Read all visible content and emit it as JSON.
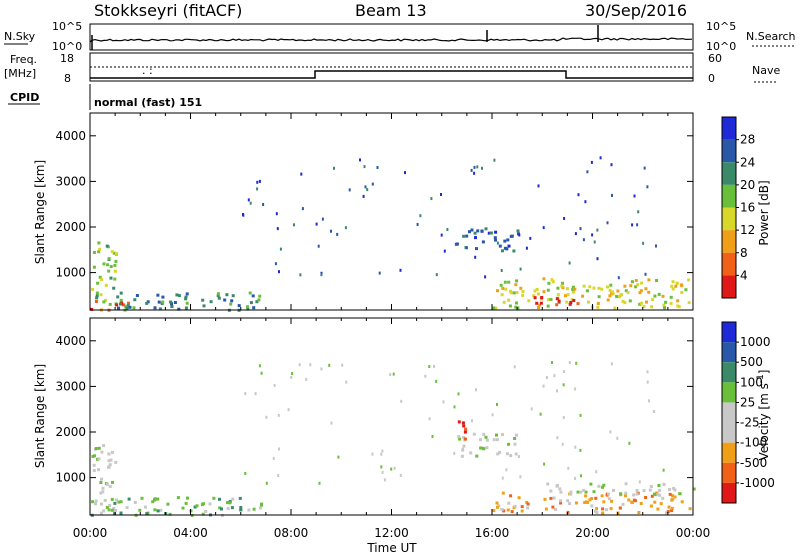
{
  "header": {
    "station": "Stokkseyri (fitACF)",
    "beam": "Beam 13",
    "date": "30/Sep/2016"
  },
  "summary_panels": {
    "nsky_label": "N.Sky",
    "nsearch_label": "N.Search",
    "nsky_ticks": [
      "10^5",
      "10^0"
    ],
    "nsearch_ticks": [
      "10^5",
      "10^0"
    ],
    "freq_label_1": "Freq.",
    "freq_label_2": "[MHz]",
    "freq_ticks": [
      "18",
      "8"
    ],
    "nave_label": "Nave",
    "nave_ticks": [
      "60",
      "0"
    ],
    "cpid_label": "CPID",
    "cpid_text": "normal (fast) 151"
  },
  "colors": {
    "power": [
      "#1e2ad8",
      "#2a58a8",
      "#3a8a6a",
      "#6abf3a",
      "#d7d82a",
      "#f0a018",
      "#f06018",
      "#e01818"
    ],
    "velocity": [
      "#1e2ad8",
      "#2a58a8",
      "#3a8a6a",
      "#6abf3a",
      "#c8c8c8",
      "#c8c8c8",
      "#f0a018",
      "#f06018",
      "#e01818"
    ]
  },
  "chart_data": [
    {
      "type": "heatmap",
      "id": "power",
      "xlabel": "",
      "ylabel": "Slant Range [km]",
      "xlim": [
        0,
        24
      ],
      "ylim": [
        180,
        4500
      ],
      "yticks": [
        "1000",
        "2000",
        "3000",
        "4000"
      ],
      "xticks": [
        "00:00",
        "04:00",
        "08:00",
        "12:00",
        "16:00",
        "20:00",
        "00:00"
      ],
      "colorbar": {
        "label": "Power [dB]",
        "ticks": [
          "28",
          "24",
          "20",
          "16",
          "12",
          "8",
          "4"
        ]
      },
      "clusters": [
        {
          "t0": 0.0,
          "t1": 1.0,
          "r0": 300,
          "r1": 1750,
          "level": 3
        },
        {
          "t0": 0.0,
          "t1": 1.5,
          "r0": 200,
          "r1": 450,
          "level": 6
        },
        {
          "t0": 1.0,
          "t1": 6.8,
          "r0": 200,
          "r1": 600,
          "level": 2
        },
        {
          "t0": 14.5,
          "t1": 17.0,
          "r0": 1500,
          "r1": 2000,
          "level": 1
        },
        {
          "t0": 16.0,
          "t1": 24.0,
          "r0": 250,
          "r1": 900,
          "level": 4
        },
        {
          "t0": 17.5,
          "t1": 19.5,
          "r0": 280,
          "r1": 500,
          "level": 7
        }
      ]
    },
    {
      "type": "heatmap",
      "id": "velocity",
      "xlabel": "Time UT",
      "ylabel": "Slant Range [km]",
      "xlim": [
        0,
        24
      ],
      "ylim": [
        180,
        4500
      ],
      "yticks": [
        "1000",
        "2000",
        "3000",
        "4000"
      ],
      "xticks": [
        "00:00",
        "04:00",
        "08:00",
        "12:00",
        "16:00",
        "20:00",
        "00:00"
      ],
      "colorbar": {
        "label": "Velocity [m s^-1]",
        "ticks": [
          "1000",
          "500",
          "100",
          "25",
          "-25",
          "-100",
          "-500",
          "-1000"
        ]
      },
      "clusters": [
        {
          "t0": 0.0,
          "t1": 1.0,
          "r0": 300,
          "r1": 1750,
          "level": 4
        },
        {
          "t0": 0.0,
          "t1": 6.8,
          "r0": 200,
          "r1": 600,
          "level": 3
        },
        {
          "t0": 14.5,
          "t1": 17.0,
          "r0": 1500,
          "r1": 2000,
          "level": 4
        },
        {
          "t0": 14.6,
          "t1": 14.9,
          "r0": 1600,
          "r1": 2400,
          "level": 8
        },
        {
          "t0": 16.0,
          "t1": 24.0,
          "r0": 250,
          "r1": 700,
          "level": 6
        },
        {
          "t0": 18.0,
          "t1": 24.0,
          "r0": 650,
          "r1": 900,
          "level": 4
        }
      ]
    }
  ]
}
